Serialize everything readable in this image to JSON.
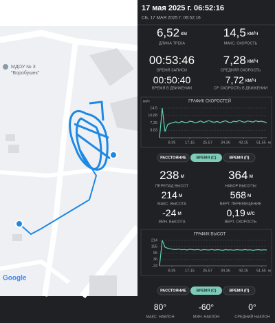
{
  "header": {
    "title": "17 мая 2025 г. 06:52:16",
    "subtitle": "СБ, 17 МАЯ 2025 Г. 06:52:16"
  },
  "map": {
    "poi": [
      "МДОУ № 3",
      "\"Воробушек\""
    ],
    "logo": "Google"
  },
  "stats": [
    {
      "value": "6,52",
      "unit": "км",
      "label": "ДЛИНА ТРЕКА"
    },
    {
      "value": "14,5",
      "unit": "км/ч",
      "label": "МАКС. СКОРОСТЬ"
    },
    {
      "value": "00:53:46",
      "label": "ВРЕМЯ ЗАПИСИ"
    },
    {
      "value": "7,28",
      "unit": "км/ч",
      "label": "СРЕДНЯЯ СКОРОСТЬ"
    },
    {
      "value": "00:50:40",
      "label": "ВРЕМЯ В ДВИЖЕНИИ"
    },
    {
      "value": "7,72",
      "unit": "км/ч",
      "label": "СР. СКОРОСТЬ В ДВИЖЕНИИ"
    }
  ],
  "speed_chart": {
    "title": "ГРАФИК СКОРОСТЕЙ",
    "unit": "км/ч",
    "color": "#5fd0b5",
    "ylim": [
      0,
      14.5
    ],
    "yticks": [
      {
        "value": 14.5,
        "label": "14,5"
      },
      {
        "value": 10.88,
        "label": "10,88"
      },
      {
        "value": 7.25,
        "label": "7,25"
      },
      {
        "value": 3.63,
        "label": "3,63"
      }
    ],
    "xticks": [
      "8.39",
      "17.15",
      "25.57",
      "34.36",
      "43.15",
      "51.55"
    ],
    "x_unit": "м",
    "values": [
      0,
      14.5,
      3,
      6.5,
      7,
      7.5,
      7.8,
      7.2,
      8,
      7.6,
      7.4,
      8.1,
      7.9,
      7.3,
      7.7,
      8.2,
      7.5,
      7.9,
      8.4,
      7.8,
      7.6,
      8,
      7.4,
      7.9,
      8.3,
      7.7,
      7.5,
      8.1,
      7.8,
      8.5,
      7.9,
      7.6,
      8.2,
      8,
      7.7,
      8.3,
      7.9,
      8.1,
      7.8,
      7.5
    ]
  },
  "speed_tabs": {
    "options": [
      "РАССТОЯНИЕ",
      "ВРЕМЯ (С)",
      "ВРЕМЯ (П)"
    ],
    "selected": 1
  },
  "altitude_stats": [
    {
      "value": "238",
      "unit": "м",
      "label": "ПЕРЕПАД ВЫСОТ"
    },
    {
      "value": "364",
      "unit": "м",
      "label": "НАБОР ВЫСОТЫ"
    },
    {
      "value": "214",
      "unit": "м",
      "label": "МАКС. ВЫСОТА"
    },
    {
      "value": "568",
      "unit": "м",
      "label": "ВЕРТ. ПЕРЕМЕЩЕНИЕ"
    },
    {
      "value": "-24",
      "unit": "м",
      "label": "МИН. ВЫСОТА"
    },
    {
      "value": "0,19",
      "unit": "м/с",
      "label": "ВЕРТ. СКОРОСТЬ"
    }
  ],
  "altitude_chart": {
    "title": "ГРАФИК ВЫСОТ",
    "color": "#5fd0b5",
    "ylim": [
      -24,
      214
    ],
    "yticks": [
      214,
      155,
      95,
      36,
      -24
    ],
    "xticks": [
      "8.39",
      "17.15",
      "25.57",
      "34.36",
      "43.15",
      "51.55"
    ],
    "x_unit": "м",
    "values": [
      -24,
      214,
      150,
      140,
      135,
      130,
      128,
      132,
      126,
      129,
      124,
      131,
      127,
      125,
      130,
      122,
      128,
      126,
      124,
      129,
      123,
      127,
      125,
      121,
      128,
      124,
      126,
      122,
      127,
      125,
      123,
      128,
      124,
      126,
      121,
      125,
      127,
      123,
      126,
      124
    ]
  },
  "altitude_tabs": {
    "options": [
      "РАССТОЯНИЕ",
      "ВРЕМЯ (С)",
      "ВРЕМЯ (П)"
    ],
    "selected": 1
  },
  "slope_stats": [
    {
      "value": "80°",
      "label": "МАКС. НАКЛОН"
    },
    {
      "value": "-60°",
      "label": "МИН. НАКЛОН"
    },
    {
      "value": "0°",
      "label": "СРЕДНИЙ НАКЛОН"
    }
  ]
}
